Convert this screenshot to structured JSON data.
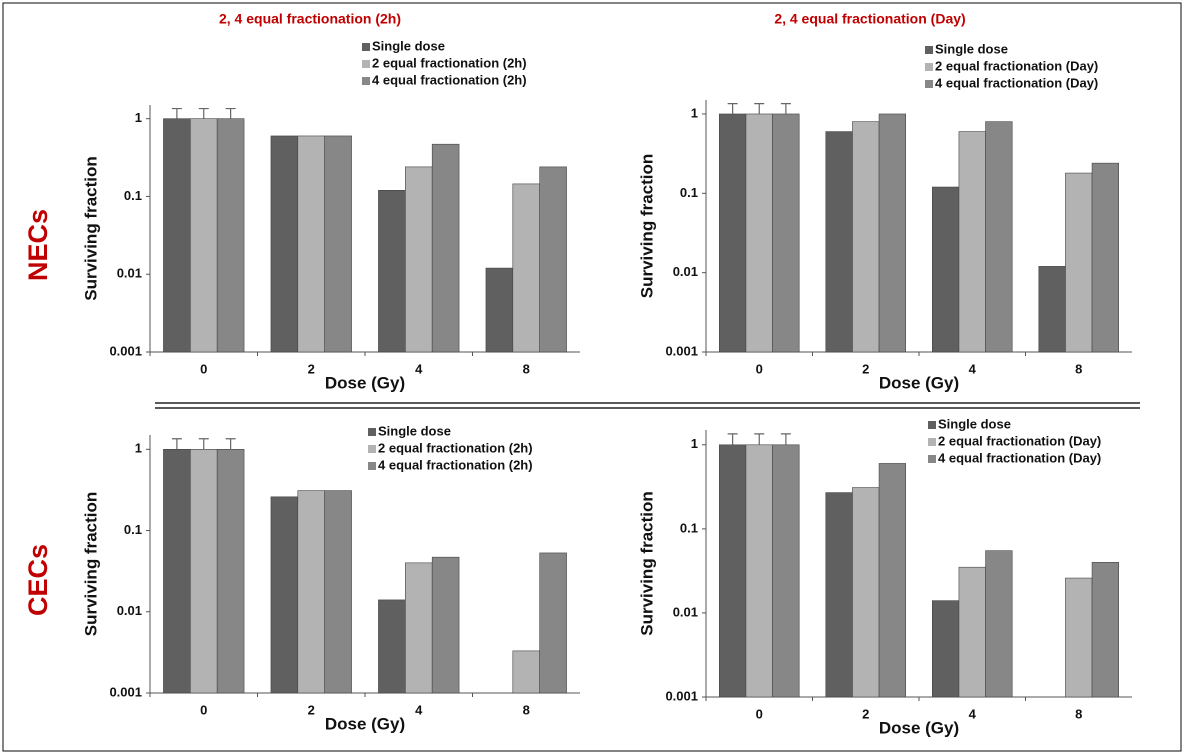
{
  "row_labels": [
    "NECs",
    "CECs"
  ],
  "chart_data": [
    {
      "type": "bar",
      "title": "2, 4 equal fractionation (2h)",
      "x_label": "Dose (Gy)",
      "y_label": "Surviving fraction",
      "categories": [
        "0",
        "2",
        "4",
        "8"
      ],
      "log_scale": true,
      "ylim": [
        0.001,
        1.5
      ],
      "yticks": [
        0.001,
        0.01,
        0.1,
        1
      ],
      "series": [
        {
          "name": "Single dose",
          "color": "#606060",
          "values": [
            1,
            0.6,
            0.12,
            0.012
          ],
          "errors": [
            0.35,
            null,
            null,
            null
          ]
        },
        {
          "name": "2 equal fractionation (2h)",
          "color": "#b3b3b3",
          "values": [
            1,
            0.6,
            0.24,
            0.145
          ],
          "errors": [
            0.35,
            null,
            null,
            null
          ]
        },
        {
          "name": "4 equal fractionation (2h)",
          "color": "#878787",
          "values": [
            1,
            0.6,
            0.47,
            0.24
          ],
          "errors": [
            0.35,
            null,
            null,
            null
          ]
        }
      ]
    },
    {
      "type": "bar",
      "title": "2, 4 equal fractionation (Day)",
      "x_label": "Dose (Gy)",
      "y_label": "Surviving fraction",
      "categories": [
        "0",
        "2",
        "4",
        "8"
      ],
      "log_scale": true,
      "ylim": [
        0.001,
        1.5
      ],
      "yticks": [
        0.001,
        0.01,
        0.1,
        1
      ],
      "series": [
        {
          "name": "Single dose",
          "color": "#606060",
          "values": [
            1,
            0.6,
            0.12,
            0.012
          ],
          "errors": [
            0.35,
            null,
            null,
            null
          ]
        },
        {
          "name": "2 equal fractionation (Day)",
          "color": "#b3b3b3",
          "values": [
            1,
            0.8,
            0.6,
            0.18
          ],
          "errors": [
            0.35,
            null,
            null,
            null
          ]
        },
        {
          "name": "4 equal fractionation (Day)",
          "color": "#878787",
          "values": [
            1,
            1.0,
            0.8,
            0.24
          ],
          "errors": [
            0.35,
            null,
            null,
            null
          ]
        }
      ]
    },
    {
      "type": "bar",
      "x_label": "Dose (Gy)",
      "y_label": "Surviving fraction",
      "categories": [
        "0",
        "2",
        "4",
        "8"
      ],
      "log_scale": true,
      "ylim": [
        0.001,
        1.5
      ],
      "yticks": [
        0.001,
        0.01,
        0.1,
        1
      ],
      "series": [
        {
          "name": "Single dose",
          "color": "#606060",
          "values": [
            1,
            0.26,
            0.014,
            null
          ],
          "errors": [
            0.35,
            null,
            null,
            null
          ]
        },
        {
          "name": "2 equal fractionation (2h)",
          "color": "#b3b3b3",
          "values": [
            1,
            0.31,
            0.04,
            0.0033
          ],
          "errors": [
            0.35,
            null,
            null,
            null
          ]
        },
        {
          "name": "4 equal fractionation (2h)",
          "color": "#878787",
          "values": [
            1,
            0.31,
            0.047,
            0.053
          ],
          "errors": [
            0.35,
            null,
            null,
            null
          ]
        }
      ]
    },
    {
      "type": "bar",
      "x_label": "Dose (Gy)",
      "y_label": "Surviving fraction",
      "categories": [
        "0",
        "2",
        "4",
        "8"
      ],
      "log_scale": true,
      "ylim": [
        0.001,
        1.5
      ],
      "yticks": [
        0.001,
        0.01,
        0.1,
        1
      ],
      "series": [
        {
          "name": "Single dose",
          "color": "#606060",
          "values": [
            1,
            0.27,
            0.014,
            null
          ],
          "errors": [
            0.35,
            null,
            null,
            null
          ]
        },
        {
          "name": "2 equal fractionation (Day)",
          "color": "#b3b3b3",
          "values": [
            1,
            0.31,
            0.035,
            0.026
          ],
          "errors": [
            0.35,
            null,
            null,
            null
          ]
        },
        {
          "name": "4 equal fractionation (Day)",
          "color": "#878787",
          "values": [
            1,
            0.6,
            0.055,
            0.04
          ],
          "errors": [
            0.35,
            null,
            null,
            null
          ]
        }
      ]
    }
  ]
}
